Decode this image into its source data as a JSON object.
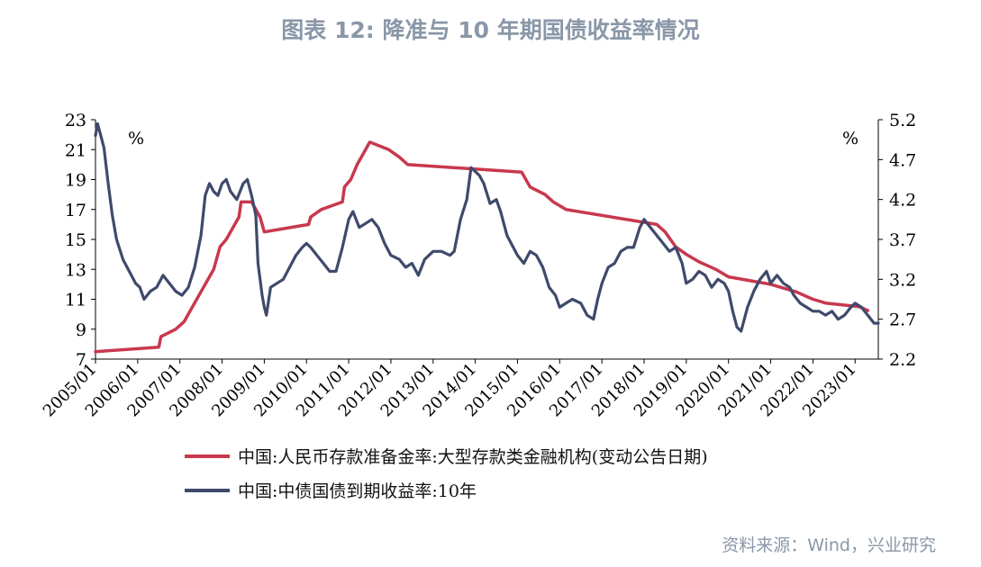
{
  "title": "图表 12: 降准与 10 年期国债收益率情况",
  "source": "资料来源：Wind，兴业研究",
  "chart_data": {
    "type": "line",
    "left_axis": {
      "unit": "%",
      "ticks": [
        "23",
        "21",
        "19",
        "17",
        "15",
        "13",
        "11",
        "9",
        "7"
      ],
      "ylim": [
        7,
        23
      ]
    },
    "right_axis": {
      "unit": "%",
      "ticks": [
        "5.2",
        "4.7",
        "4.2",
        "3.7",
        "3.2",
        "2.7",
        "2.2"
      ],
      "ylim": [
        2.2,
        5.2
      ]
    },
    "x_ticks": [
      "2005/01",
      "2006/01",
      "2007/01",
      "2008/01",
      "2009/01",
      "2010/01",
      "2011/01",
      "2012/01",
      "2013/01",
      "2014/01",
      "2015/01",
      "2016/01",
      "2017/01",
      "2018/01",
      "2019/01",
      "2020/01",
      "2021/01",
      "2022/01",
      "2023/01"
    ],
    "xlim": [
      2005.0,
      2023.55
    ],
    "series": [
      {
        "name": "中国:人民币存款准备金率:大型存款类金融机构(变动公告日期)",
        "axis": "left",
        "color": "#c8384e",
        "points": [
          [
            2005.0,
            7.5
          ],
          [
            2006.5,
            7.8
          ],
          [
            2006.55,
            8.5
          ],
          [
            2006.9,
            9.0
          ],
          [
            2007.1,
            9.5
          ],
          [
            2007.3,
            10.5
          ],
          [
            2007.4,
            11.0
          ],
          [
            2007.5,
            11.5
          ],
          [
            2007.7,
            12.5
          ],
          [
            2007.8,
            13.0
          ],
          [
            2007.95,
            14.5
          ],
          [
            2008.1,
            15.0
          ],
          [
            2008.3,
            16.0
          ],
          [
            2008.4,
            16.5
          ],
          [
            2008.45,
            17.5
          ],
          [
            2008.7,
            17.5
          ],
          [
            2008.9,
            16.5
          ],
          [
            2009.0,
            15.5
          ],
          [
            2010.05,
            16.0
          ],
          [
            2010.1,
            16.5
          ],
          [
            2010.35,
            17.0
          ],
          [
            2010.85,
            17.5
          ],
          [
            2010.9,
            18.5
          ],
          [
            2011.05,
            19.0
          ],
          [
            2011.2,
            20.0
          ],
          [
            2011.3,
            20.5
          ],
          [
            2011.5,
            21.5
          ],
          [
            2011.95,
            21.0
          ],
          [
            2012.2,
            20.5
          ],
          [
            2012.4,
            20.0
          ],
          [
            2015.1,
            19.5
          ],
          [
            2015.3,
            18.5
          ],
          [
            2015.65,
            18.0
          ],
          [
            2015.85,
            17.5
          ],
          [
            2016.15,
            17.0
          ],
          [
            2018.3,
            16.0
          ],
          [
            2018.5,
            15.5
          ],
          [
            2018.75,
            14.5
          ],
          [
            2019.0,
            14.0
          ],
          [
            2019.3,
            13.5
          ],
          [
            2019.7,
            13.0
          ],
          [
            2020.0,
            12.5
          ],
          [
            2021.0,
            12.0
          ],
          [
            2021.6,
            11.5
          ],
          [
            2022.0,
            11.0
          ],
          [
            2022.3,
            10.75
          ],
          [
            2023.1,
            10.5
          ],
          [
            2023.3,
            10.25
          ]
        ]
      },
      {
        "name": "中国:中债国债到期收益率:10年",
        "axis": "right",
        "color": "#3f4a6b",
        "points": [
          [
            2005.0,
            5.0
          ],
          [
            2005.05,
            5.15
          ],
          [
            2005.1,
            5.05
          ],
          [
            2005.2,
            4.85
          ],
          [
            2005.3,
            4.4
          ],
          [
            2005.4,
            4.0
          ],
          [
            2005.5,
            3.7
          ],
          [
            2005.65,
            3.45
          ],
          [
            2005.8,
            3.3
          ],
          [
            2005.95,
            3.15
          ],
          [
            2006.05,
            3.1
          ],
          [
            2006.15,
            2.95
          ],
          [
            2006.3,
            3.05
          ],
          [
            2006.45,
            3.1
          ],
          [
            2006.6,
            3.25
          ],
          [
            2006.75,
            3.15
          ],
          [
            2006.9,
            3.05
          ],
          [
            2007.05,
            3.0
          ],
          [
            2007.2,
            3.1
          ],
          [
            2007.35,
            3.35
          ],
          [
            2007.5,
            3.75
          ],
          [
            2007.6,
            4.25
          ],
          [
            2007.7,
            4.4
          ],
          [
            2007.8,
            4.3
          ],
          [
            2007.9,
            4.25
          ],
          [
            2008.0,
            4.4
          ],
          [
            2008.1,
            4.45
          ],
          [
            2008.2,
            4.3
          ],
          [
            2008.35,
            4.2
          ],
          [
            2008.5,
            4.4
          ],
          [
            2008.6,
            4.45
          ],
          [
            2008.7,
            4.25
          ],
          [
            2008.8,
            4.0
          ],
          [
            2008.85,
            3.4
          ],
          [
            2008.95,
            3.0
          ],
          [
            2009.0,
            2.85
          ],
          [
            2009.05,
            2.75
          ],
          [
            2009.15,
            3.1
          ],
          [
            2009.3,
            3.15
          ],
          [
            2009.45,
            3.2
          ],
          [
            2009.6,
            3.35
          ],
          [
            2009.75,
            3.5
          ],
          [
            2009.9,
            3.6
          ],
          [
            2010.0,
            3.65
          ],
          [
            2010.1,
            3.6
          ],
          [
            2010.25,
            3.5
          ],
          [
            2010.4,
            3.4
          ],
          [
            2010.55,
            3.3
          ],
          [
            2010.7,
            3.3
          ],
          [
            2010.85,
            3.6
          ],
          [
            2011.0,
            3.95
          ],
          [
            2011.1,
            4.05
          ],
          [
            2011.25,
            3.85
          ],
          [
            2011.4,
            3.9
          ],
          [
            2011.55,
            3.95
          ],
          [
            2011.7,
            3.85
          ],
          [
            2011.85,
            3.65
          ],
          [
            2012.0,
            3.5
          ],
          [
            2012.2,
            3.45
          ],
          [
            2012.35,
            3.35
          ],
          [
            2012.5,
            3.4
          ],
          [
            2012.65,
            3.25
          ],
          [
            2012.8,
            3.45
          ],
          [
            2013.0,
            3.55
          ],
          [
            2013.2,
            3.55
          ],
          [
            2013.4,
            3.5
          ],
          [
            2013.5,
            3.55
          ],
          [
            2013.65,
            3.95
          ],
          [
            2013.8,
            4.2
          ],
          [
            2013.9,
            4.6
          ],
          [
            2014.0,
            4.55
          ],
          [
            2014.1,
            4.5
          ],
          [
            2014.2,
            4.4
          ],
          [
            2014.35,
            4.15
          ],
          [
            2014.5,
            4.2
          ],
          [
            2014.6,
            4.05
          ],
          [
            2014.75,
            3.75
          ],
          [
            2014.9,
            3.6
          ],
          [
            2015.0,
            3.5
          ],
          [
            2015.15,
            3.4
          ],
          [
            2015.3,
            3.55
          ],
          [
            2015.45,
            3.5
          ],
          [
            2015.6,
            3.35
          ],
          [
            2015.75,
            3.1
          ],
          [
            2015.9,
            3.0
          ],
          [
            2016.0,
            2.85
          ],
          [
            2016.15,
            2.9
          ],
          [
            2016.3,
            2.95
          ],
          [
            2016.5,
            2.9
          ],
          [
            2016.65,
            2.75
          ],
          [
            2016.8,
            2.7
          ],
          [
            2016.9,
            2.95
          ],
          [
            2017.0,
            3.15
          ],
          [
            2017.15,
            3.35
          ],
          [
            2017.3,
            3.4
          ],
          [
            2017.45,
            3.55
          ],
          [
            2017.6,
            3.6
          ],
          [
            2017.75,
            3.6
          ],
          [
            2017.9,
            3.85
          ],
          [
            2018.0,
            3.95
          ],
          [
            2018.15,
            3.85
          ],
          [
            2018.3,
            3.75
          ],
          [
            2018.45,
            3.65
          ],
          [
            2018.6,
            3.55
          ],
          [
            2018.75,
            3.6
          ],
          [
            2018.9,
            3.4
          ],
          [
            2019.0,
            3.15
          ],
          [
            2019.15,
            3.2
          ],
          [
            2019.3,
            3.3
          ],
          [
            2019.45,
            3.25
          ],
          [
            2019.6,
            3.1
          ],
          [
            2019.75,
            3.2
          ],
          [
            2019.9,
            3.15
          ],
          [
            2020.0,
            3.05
          ],
          [
            2020.1,
            2.8
          ],
          [
            2020.2,
            2.6
          ],
          [
            2020.3,
            2.55
          ],
          [
            2020.45,
            2.85
          ],
          [
            2020.6,
            3.05
          ],
          [
            2020.75,
            3.2
          ],
          [
            2020.9,
            3.3
          ],
          [
            2021.0,
            3.15
          ],
          [
            2021.15,
            3.25
          ],
          [
            2021.3,
            3.15
          ],
          [
            2021.45,
            3.1
          ],
          [
            2021.55,
            3.0
          ],
          [
            2021.7,
            2.9
          ],
          [
            2021.85,
            2.85
          ],
          [
            2022.0,
            2.8
          ],
          [
            2022.15,
            2.8
          ],
          [
            2022.3,
            2.75
          ],
          [
            2022.45,
            2.8
          ],
          [
            2022.6,
            2.7
          ],
          [
            2022.75,
            2.75
          ],
          [
            2022.9,
            2.85
          ],
          [
            2023.0,
            2.9
          ],
          [
            2023.15,
            2.85
          ],
          [
            2023.3,
            2.75
          ],
          [
            2023.45,
            2.65
          ],
          [
            2023.55,
            2.65
          ]
        ]
      }
    ]
  }
}
